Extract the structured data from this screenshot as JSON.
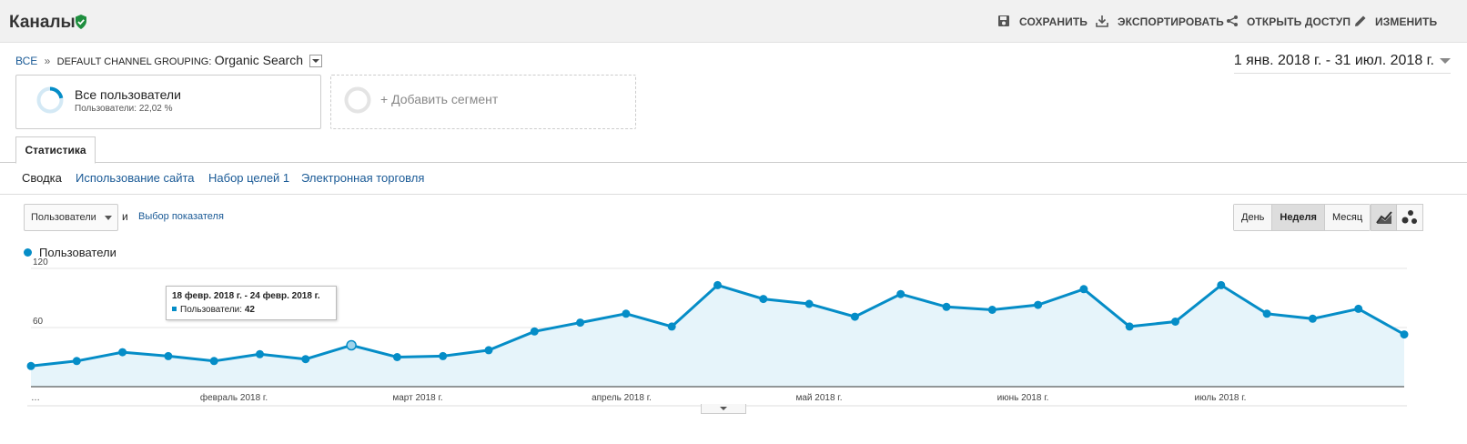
{
  "header": {
    "title": "Каналы",
    "actions": [
      {
        "label": "СОХРАНИТЬ",
        "icon": "save-icon"
      },
      {
        "label": "ЭКСПОРТИРОВАТЬ",
        "icon": "download-icon"
      },
      {
        "label": "ОТКРЫТЬ ДОСТУП",
        "icon": "share-icon"
      },
      {
        "label": "ИЗМЕНИТЬ",
        "icon": "pencil-icon"
      }
    ]
  },
  "breadcrumb": {
    "root": "ВСЕ",
    "separator": "»",
    "dimension": "DEFAULT CHANNEL GROUPING:",
    "value": "Organic Search"
  },
  "date_range": "1 янв. 2018 г. - 31 июл. 2018 г.",
  "segments": {
    "active_name": "Все пользователи",
    "active_sub": "Пользователи: 22,02 %",
    "active_fraction": 0.2202,
    "add_label": "+ Добавить сегмент"
  },
  "tabs": {
    "main": "Статистика"
  },
  "subtabs": [
    "Сводка",
    "Использование сайта",
    "Набор целей 1",
    "Электронная торговля"
  ],
  "controls": {
    "metric": "Пользователи",
    "and": "и",
    "pick_metric": "Выбор показателя",
    "periods": [
      "День",
      "Неделя",
      "Месяц"
    ],
    "active_period": "Неделя"
  },
  "legend": {
    "series": "Пользователи"
  },
  "tooltip": {
    "date": "18 февр. 2018 г. - 24 февр. 2018 г.",
    "label": "Пользователи:",
    "value": "42"
  },
  "colors": {
    "series": "#058dc7",
    "fill": "#e6f4fa",
    "link": "#1a5a96",
    "verified": "#1e8e3e"
  },
  "chart_data": {
    "type": "area",
    "ylim": [
      0,
      120
    ],
    "yticks": [
      60,
      120
    ],
    "xlabels": [
      "…",
      "февраль 2018 г.",
      "март 2018 г.",
      "апрель 2018 г.",
      "май 2018 г.",
      "июнь 2018 г.",
      "июль 2018 г."
    ],
    "series": [
      {
        "name": "Пользователи",
        "values": [
          21,
          26,
          35,
          31,
          26,
          33,
          28,
          42,
          30,
          31,
          37,
          56,
          65,
          74,
          61,
          103,
          89,
          84,
          71,
          94,
          81,
          78,
          83,
          99,
          61,
          66,
          103,
          74,
          69,
          79,
          53
        ]
      }
    ]
  }
}
